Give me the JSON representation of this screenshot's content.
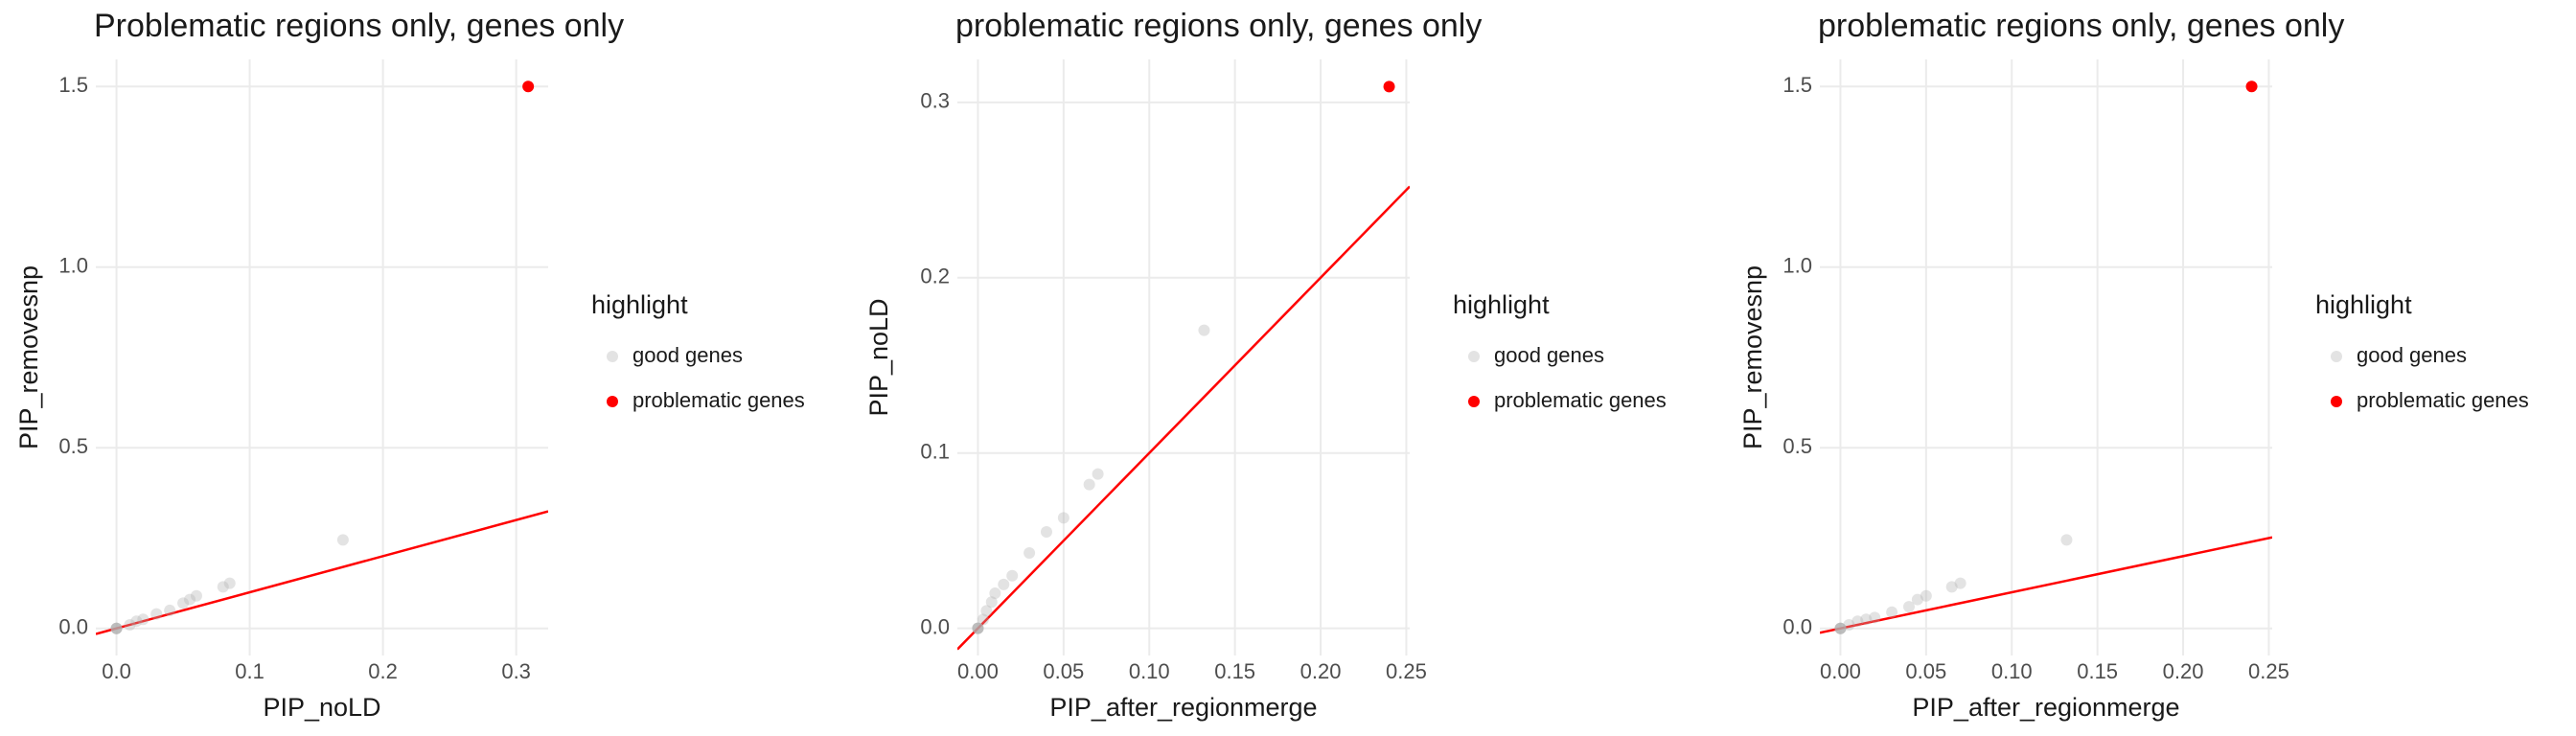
{
  "chart_data": [
    {
      "type": "scatter",
      "title": "Problematic regions only, genes only",
      "x_label": "PIP_noLD",
      "y_label": "PIP_removesnp",
      "xlim": [
        -0.0155,
        0.324
      ],
      "ylim": [
        -0.075,
        1.575
      ],
      "xticks": [
        {
          "value": 0,
          "label": "0.0"
        },
        0.1,
        0.2,
        0.3
      ],
      "yticks": [
        {
          "value": 0,
          "label": "0.0"
        },
        0.5,
        {
          "value": 1,
          "label": "1.0"
        },
        1.5
      ],
      "grid": true,
      "legend_title": "highlight",
      "reference_line": {
        "slope": 1,
        "intercept": 0,
        "color": "#ff0000"
      },
      "series": [
        {
          "name": "good genes",
          "color": "#b0b0b0",
          "x": [
            0,
            0,
            0,
            0,
            0.01,
            0.015,
            0.02,
            0.03,
            0.04,
            0.05,
            0.055,
            0.06,
            0.08,
            0.085,
            0.17
          ],
          "values": [
            0,
            0,
            0,
            0,
            0.01,
            0.02,
            0.025,
            0.04,
            0.05,
            0.07,
            0.08,
            0.09,
            0.115,
            0.125,
            0.245
          ]
        },
        {
          "name": "problematic genes",
          "color": "#ff0000",
          "x": [
            0.309
          ],
          "values": [
            1.5
          ]
        }
      ]
    },
    {
      "type": "scatter",
      "title": "problematic regions only, genes only",
      "x_label": "PIP_after_regionmerge",
      "y_label": "PIP_noLD",
      "xlim": [
        -0.012,
        0.252
      ],
      "ylim": [
        -0.0155,
        0.3245
      ],
      "xticks": [
        {
          "value": 0,
          "label": "0.00"
        },
        0.05,
        {
          "value": 0.1,
          "label": "0.10"
        },
        0.15,
        {
          "value": 0.2,
          "label": "0.20"
        },
        0.25
      ],
      "yticks": [
        {
          "value": 0,
          "label": "0.0"
        },
        0.1,
        0.2,
        0.3
      ],
      "grid": true,
      "legend_title": "highlight",
      "reference_line": {
        "slope": 1,
        "intercept": 0,
        "color": "#ff0000"
      },
      "series": [
        {
          "name": "good genes",
          "color": "#b0b0b0",
          "x": [
            0,
            0,
            0,
            0,
            0.003,
            0.005,
            0.008,
            0.01,
            0.015,
            0.02,
            0.03,
            0.04,
            0.05,
            0.065,
            0.07,
            0.132
          ],
          "values": [
            0,
            0,
            0,
            0,
            0.005,
            0.01,
            0.015,
            0.02,
            0.025,
            0.03,
            0.043,
            0.055,
            0.063,
            0.082,
            0.088,
            0.17
          ]
        },
        {
          "name": "problematic genes",
          "color": "#ff0000",
          "x": [
            0.24
          ],
          "values": [
            0.309
          ]
        }
      ]
    },
    {
      "type": "scatter",
      "title": "problematic regions only, genes only",
      "x_label": "PIP_after_regionmerge",
      "y_label": "PIP_removesnp",
      "xlim": [
        -0.012,
        0.252
      ],
      "ylim": [
        -0.075,
        1.575
      ],
      "xticks": [
        {
          "value": 0,
          "label": "0.00"
        },
        0.05,
        {
          "value": 0.1,
          "label": "0.10"
        },
        0.15,
        {
          "value": 0.2,
          "label": "0.20"
        },
        0.25
      ],
      "yticks": [
        {
          "value": 0,
          "label": "0.0"
        },
        0.5,
        {
          "value": 1,
          "label": "1.0"
        },
        1.5
      ],
      "grid": true,
      "legend_title": "highlight",
      "reference_line": {
        "slope": 1,
        "intercept": 0,
        "color": "#ff0000"
      },
      "series": [
        {
          "name": "good genes",
          "color": "#b0b0b0",
          "x": [
            0,
            0,
            0,
            0,
            0.005,
            0.01,
            0.015,
            0.02,
            0.03,
            0.04,
            0.045,
            0.05,
            0.065,
            0.07,
            0.132
          ],
          "values": [
            0,
            0,
            0,
            0,
            0.01,
            0.02,
            0.025,
            0.03,
            0.045,
            0.06,
            0.08,
            0.09,
            0.115,
            0.125,
            0.245
          ]
        },
        {
          "name": "problematic genes",
          "color": "#ff0000",
          "x": [
            0.24
          ],
          "values": [
            1.5
          ]
        }
      ]
    }
  ]
}
